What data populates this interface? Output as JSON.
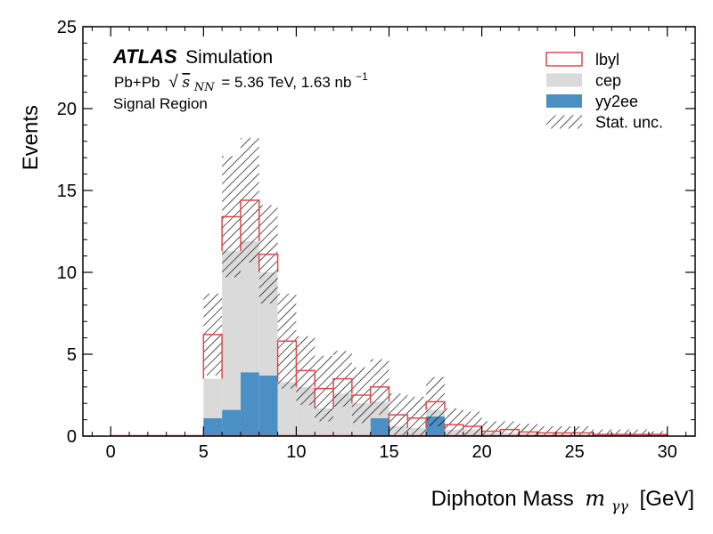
{
  "chart_data": {
    "type": "bar",
    "histtype": "stacked-step",
    "xlabel": "Diphoton Mass",
    "xlabel_symbol": "m",
    "xlabel_subscript": "γγ",
    "xlabel_unit": "[GeV]",
    "ylabel": "Events",
    "xlim": [
      -1.5,
      31.5
    ],
    "ylim": [
      0,
      25
    ],
    "x_ticks": [
      0,
      5,
      10,
      15,
      20,
      25,
      30
    ],
    "y_ticks": [
      0,
      5,
      10,
      15,
      20,
      25
    ],
    "grid": false,
    "legend_position": "top-right",
    "bin_edges": [
      0,
      1,
      2,
      3,
      4,
      5,
      6,
      7,
      8,
      9,
      10,
      11,
      12,
      13,
      14,
      15,
      16,
      17,
      18,
      19,
      20,
      21,
      22,
      23,
      24,
      25,
      26,
      27,
      28,
      29,
      30
    ],
    "series": [
      {
        "name": "yy2ee",
        "style": "filled",
        "color": "#4a90c4",
        "values": [
          0,
          0,
          0,
          0,
          0,
          1.1,
          1.6,
          3.9,
          3.7,
          0,
          0,
          0,
          0,
          0,
          1.1,
          0,
          0,
          1.2,
          0,
          0,
          0,
          0,
          0,
          0,
          0,
          0,
          0,
          0,
          0,
          0
        ]
      },
      {
        "name": "cep",
        "style": "filled",
        "color": "#dadada",
        "values": [
          0,
          0,
          0,
          0,
          0,
          2.4,
          9.7,
          8.0,
          6.3,
          3.3,
          3.0,
          1.7,
          2.6,
          2.0,
          1.0,
          0.6,
          0.5,
          0.4,
          0.4,
          0.4,
          0.2,
          0.2,
          0.15,
          0.1,
          0.1,
          0.1,
          0.05,
          0.05,
          0.05,
          0
        ]
      },
      {
        "name": "lbyl",
        "style": "step",
        "color": "#e0464c",
        "values": [
          0,
          0,
          0,
          0,
          0,
          2.7,
          2.1,
          2.5,
          1.1,
          2.5,
          1.0,
          1.2,
          0.9,
          0.5,
          0.9,
          0.7,
          0.6,
          0.5,
          0.3,
          0.2,
          0.1,
          0.2,
          0.1,
          0.1,
          0.1,
          0.1,
          0.05,
          0.05,
          0.05,
          0.1
        ]
      }
    ],
    "uncertainty": {
      "name": "Stat. unc.",
      "style": "hatched",
      "color": "#000000",
      "half_width": [
        0,
        0,
        0,
        0,
        0,
        2.5,
        3.7,
        3.8,
        3.0,
        2.9,
        2.1,
        2.0,
        1.7,
        1.7,
        1.7,
        1.3,
        1.3,
        1.5,
        1.0,
        0.9,
        0.6,
        0.5,
        0.5,
        0.4,
        0.4,
        0.4,
        0.3,
        0.3,
        0.3,
        0.2
      ]
    }
  },
  "annotations": {
    "experiment": "ATLAS",
    "label": "Simulation",
    "dataset": "Pb+Pb",
    "sqrt_symbol": "√",
    "energy_var": "s",
    "energy_sub": "NN",
    "energy_value": "= 5.36 TeV, 1.63 nb",
    "lumi_sup": "−1",
    "region": "Signal Region"
  }
}
